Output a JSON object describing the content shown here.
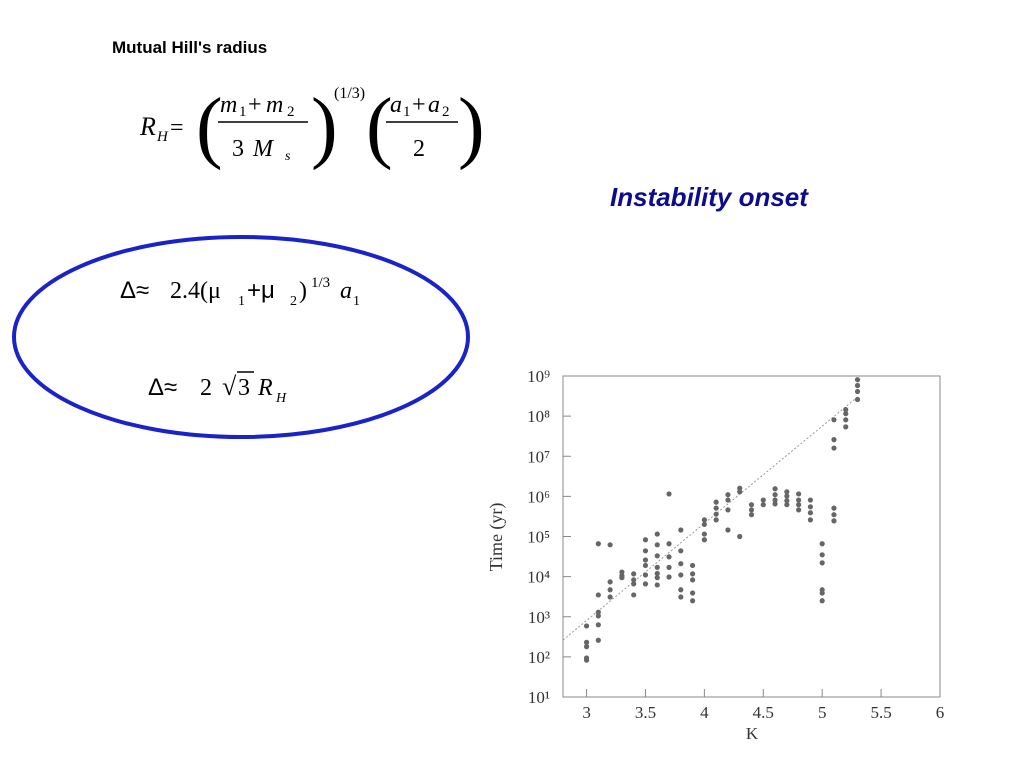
{
  "header": {
    "title": "Mutual Hill's radius",
    "subtitle": "Instability onset"
  },
  "formulas": {
    "hill": [
      "R",
      "H",
      "=",
      "(",
      "m",
      "1",
      "+",
      "m",
      "2",
      "3",
      "M",
      "s",
      ")",
      "(1/3)",
      "(",
      "a",
      "1",
      "+",
      "a",
      "2",
      "2",
      ")"
    ],
    "delta_mu": [
      "Δ≈",
      "2.4(μ",
      "1",
      "+μ",
      "2",
      ")",
      "1/3",
      "a",
      "1"
    ],
    "delta_rh": [
      "Δ≈",
      "2",
      "√",
      "3",
      "R",
      "H"
    ]
  },
  "chart_data": {
    "type": "scatter",
    "x_label": "K",
    "y_label": "Time (yr)",
    "log_y": true,
    "grid": false,
    "color": "#666666",
    "xlim": [
      2.8,
      6.0
    ],
    "ylim": [
      10,
      1000000000
    ],
    "xticks": [
      3,
      3.5,
      4,
      4.5,
      5,
      5.5,
      6
    ],
    "yticks": [
      {
        "value": 10,
        "label": "10¹"
      },
      {
        "value": 100,
        "label": "10²"
      },
      {
        "value": 1000,
        "label": "10³"
      },
      {
        "value": 10000,
        "label": "10⁴"
      },
      {
        "value": 100000,
        "label": "10⁵"
      },
      {
        "value": 1000000,
        "label": "10⁶"
      },
      {
        "value": 10000000,
        "label": "10⁷"
      },
      {
        "value": 100000000,
        "label": "10⁸"
      },
      {
        "value": 1000000000,
        "label": "10⁹"
      }
    ],
    "x": [
      3.0,
      3.0,
      3.0,
      3.0,
      3.0,
      3.1,
      3.1,
      3.1,
      3.1,
      3.1,
      3.1,
      3.2,
      3.2,
      3.2,
      3.2,
      3.3,
      3.3,
      3.3,
      3.4,
      3.4,
      3.4,
      3.4,
      3.5,
      3.5,
      3.5,
      3.5,
      3.5,
      3.5,
      3.6,
      3.6,
      3.6,
      3.6,
      3.6,
      3.6,
      3.6,
      3.7,
      3.7,
      3.7,
      3.7,
      3.7,
      3.8,
      3.8,
      3.8,
      3.8,
      3.8,
      3.8,
      3.9,
      3.9,
      3.9,
      3.9,
      3.9,
      4.0,
      4.0,
      4.0,
      4.0,
      4.1,
      4.1,
      4.1,
      4.1,
      4.2,
      4.2,
      4.2,
      4.2,
      4.3,
      4.3,
      4.3,
      4.4,
      4.4,
      4.4,
      4.5,
      4.5,
      4.6,
      4.6,
      4.6,
      4.6,
      4.7,
      4.7,
      4.7,
      4.7,
      4.8,
      4.8,
      4.8,
      4.8,
      4.9,
      4.9,
      4.9,
      4.9,
      5.0,
      5.0,
      5.0,
      5.0,
      5.0,
      5.0,
      5.1,
      5.1,
      5.1,
      5.1,
      5.1,
      5.1,
      5.2,
      5.2,
      5.2,
      5.2,
      5.3,
      5.3,
      5.3,
      5.3
    ],
    "values": [
      590,
      230,
      180,
      94,
      83,
      66000,
      3500,
      1300,
      1050,
      630,
      260,
      62000,
      7400,
      4700,
      3100,
      13000,
      10500,
      9400,
      11700,
      8300,
      6600,
      3500,
      83000,
      44000,
      26000,
      19000,
      11000,
      6600,
      115000,
      62000,
      33000,
      17000,
      12000,
      9400,
      6200,
      1150000,
      66000,
      31000,
      17000,
      9800,
      145000,
      44000,
      21000,
      11000,
      4700,
      3100,
      19000,
      11700,
      8300,
      3900,
      2500,
      260000,
      200000,
      115000,
      83000,
      720000,
      510000,
      360000,
      260000,
      1100000,
      810000,
      460000,
      145000,
      1600000,
      1300000,
      100000,
      620000,
      460000,
      350000,
      810000,
      620000,
      1550000,
      1100000,
      810000,
      650000,
      1300000,
      1020000,
      780000,
      620000,
      1150000,
      810000,
      620000,
      460000,
      810000,
      550000,
      390000,
      260000,
      66000,
      35000,
      22000,
      4700,
      3900,
      2500,
      81000000,
      26000000,
      16000000,
      510000,
      350000,
      245000,
      145000000,
      115000000,
      81000000,
      54000000,
      810000000,
      580000000,
      410000000,
      260000000
    ],
    "fit_line": {
      "x": [
        2.8,
        5.3
      ],
      "values": [
        263,
        300000000
      ]
    }
  }
}
